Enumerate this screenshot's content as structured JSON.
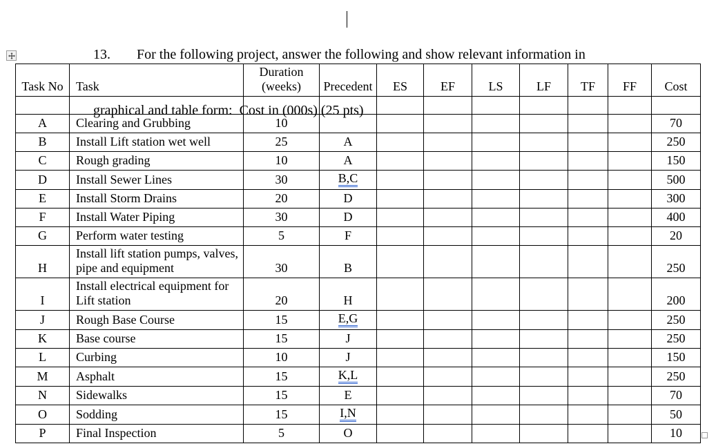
{
  "question": {
    "number": "13.",
    "line1": "For the following project, answer the following and show relevant information in",
    "line2": "graphical and table form:  Cost in (000s) (25 pts)"
  },
  "icons": {
    "table_move_handle": "four-arrow-move",
    "table_resize_handle": "resize-square"
  },
  "colors": {
    "text": "#000000",
    "background": "#ffffff",
    "table_border": "#000000",
    "grammar_underline": "#2e62cf",
    "handle_border": "#9a9a9a"
  },
  "table": {
    "headers": [
      "Task No",
      "Task",
      "Duration\n(weeks)",
      "Precedent",
      "ES",
      "EF",
      "LS",
      "LF",
      "TF",
      "FF",
      "Cost"
    ],
    "rows": [
      {
        "task_no": "A",
        "task": "Clearing and Grubbing",
        "duration": "10",
        "precedent": "",
        "flagged": false,
        "cost": "70"
      },
      {
        "task_no": "B",
        "task": "Install Lift station wet well",
        "duration": "25",
        "precedent": "A",
        "flagged": false,
        "cost": "250"
      },
      {
        "task_no": "C",
        "task": "Rough grading",
        "duration": "10",
        "precedent": "A",
        "flagged": false,
        "cost": "150"
      },
      {
        "task_no": "D",
        "task": "Install Sewer Lines",
        "duration": "30",
        "precedent": "B,C",
        "flagged": true,
        "cost": "500"
      },
      {
        "task_no": "E",
        "task": "Install Storm Drains",
        "duration": "20",
        "precedent": "D",
        "flagged": false,
        "cost": "300"
      },
      {
        "task_no": "F",
        "task": "Install Water Piping",
        "duration": "30",
        "precedent": "D",
        "flagged": false,
        "cost": "400"
      },
      {
        "task_no": "G",
        "task": "Perform water testing",
        "duration": "5",
        "precedent": "F",
        "flagged": false,
        "cost": "20"
      },
      {
        "task_no": "H",
        "task": "Install lift station pumps, valves,\npipe and equipment",
        "duration": "30",
        "precedent": "B",
        "flagged": false,
        "cost": "250"
      },
      {
        "task_no": "I",
        "task": "Install electrical equipment for\nLift station",
        "duration": "20",
        "precedent": "H",
        "flagged": false,
        "cost": "200"
      },
      {
        "task_no": "J",
        "task": "Rough Base Course",
        "duration": "15",
        "precedent": "E,G",
        "flagged": true,
        "cost": "250"
      },
      {
        "task_no": "K",
        "task": "Base course",
        "duration": "15",
        "precedent": "J",
        "flagged": false,
        "cost": "250"
      },
      {
        "task_no": "L",
        "task": "Curbing",
        "duration": "10",
        "precedent": "J",
        "flagged": false,
        "cost": "150"
      },
      {
        "task_no": "M",
        "task": "Asphalt",
        "duration": "15",
        "precedent": "K,L",
        "flagged": true,
        "cost": "250"
      },
      {
        "task_no": "N",
        "task": "Sidewalks",
        "duration": "15",
        "precedent": "E",
        "flagged": false,
        "cost": "70"
      },
      {
        "task_no": "O",
        "task": "Sodding",
        "duration": "15",
        "precedent": "I,N",
        "flagged": true,
        "cost": "50"
      },
      {
        "task_no": "P",
        "task": "Final Inspection",
        "duration": "5",
        "precedent": "O",
        "flagged": false,
        "cost": "10"
      }
    ]
  }
}
